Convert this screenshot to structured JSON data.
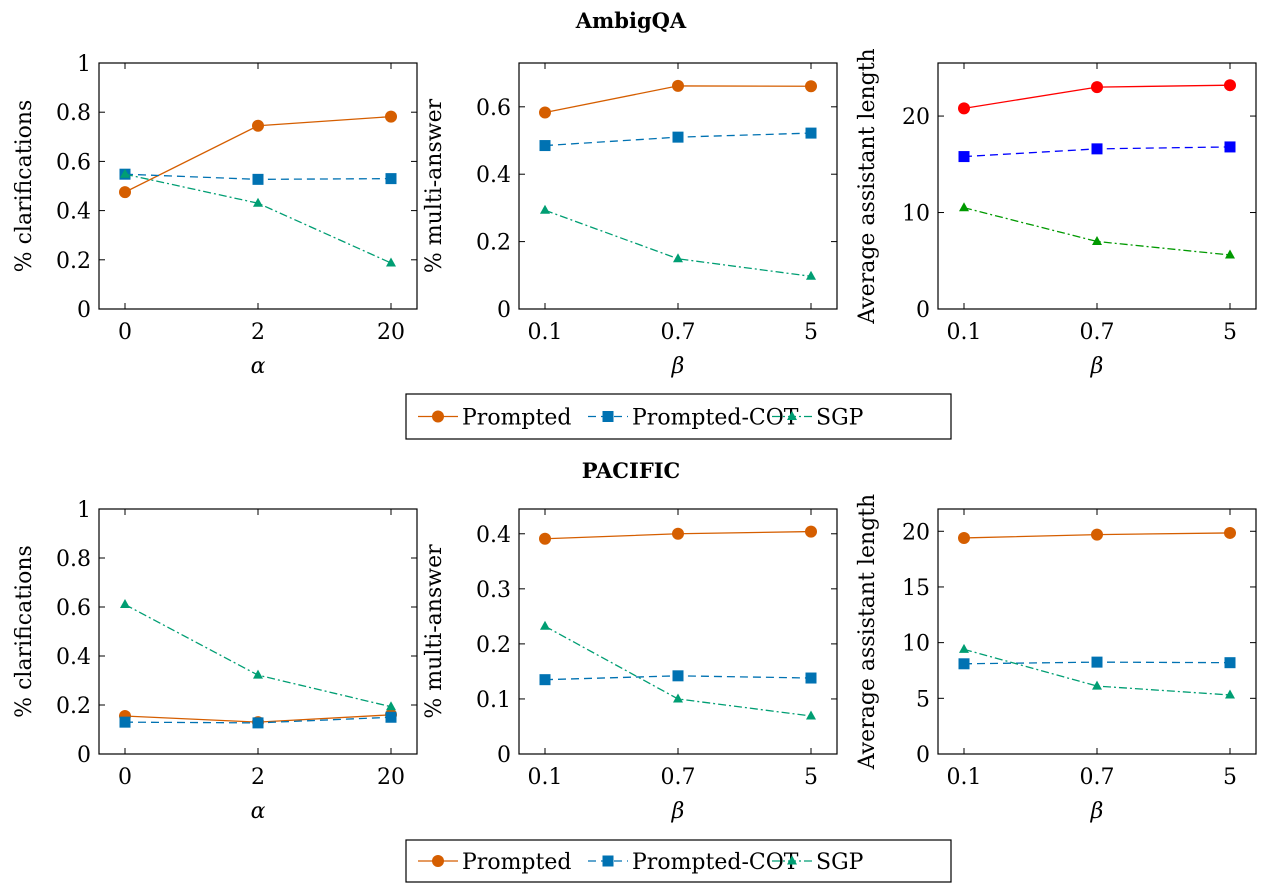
{
  "sections": [
    {
      "title": "AmbigQA",
      "legend": [
        "Prompted",
        "Prompted-COT",
        "SGP"
      ]
    },
    {
      "title": "PACIFIC",
      "legend": [
        "Prompted",
        "Prompted-COT",
        "SGP"
      ]
    }
  ],
  "series_styles": [
    {
      "color": "#d55e00",
      "marker": "circle",
      "dash": ""
    },
    {
      "color": "#0072b2",
      "marker": "square",
      "dash": "8 5"
    },
    {
      "color": "#009e73",
      "marker": "triangle",
      "dash": "8 3 2 3"
    }
  ],
  "chart_data": [
    {
      "type": "line",
      "section": 0,
      "x": [
        "0",
        "2",
        "20"
      ],
      "xlabel": "α",
      "ylabel": "% clarifications",
      "ylim": [
        0,
        1
      ],
      "yticks": [
        "0",
        "0.2",
        "0.4",
        "0.6",
        "0.8",
        "1"
      ],
      "yticks_values": [
        0,
        0.2,
        0.4,
        0.6,
        0.8,
        1
      ],
      "series": [
        {
          "name": "Prompted",
          "values": [
            0.475,
            0.745,
            0.782
          ]
        },
        {
          "name": "Prompted-COT",
          "values": [
            0.548,
            0.527,
            0.53
          ]
        },
        {
          "name": "SGP",
          "values": [
            0.548,
            0.43,
            0.187
          ]
        }
      ]
    },
    {
      "type": "line",
      "section": 0,
      "x": [
        "0.1",
        "0.7",
        "5"
      ],
      "xlabel": "β",
      "ylabel": "% multi-answer",
      "ylim": [
        0,
        0.73
      ],
      "yticks": [
        "0",
        "0.2",
        "0.4",
        "0.6"
      ],
      "yticks_values": [
        0,
        0.2,
        0.4,
        0.6
      ],
      "series": [
        {
          "name": "Prompted",
          "values": [
            0.583,
            0.662,
            0.661
          ]
        },
        {
          "name": "Prompted-COT",
          "values": [
            0.485,
            0.51,
            0.522
          ]
        },
        {
          "name": "SGP",
          "values": [
            0.293,
            0.149,
            0.097
          ]
        }
      ]
    },
    {
      "type": "line",
      "section": 0,
      "x": [
        "0.1",
        "0.7",
        "5"
      ],
      "xlabel": "β",
      "ylabel": "Average assistant length",
      "ylim": [
        0,
        25.5
      ],
      "yticks": [
        "0",
        "10",
        "20"
      ],
      "yticks_values": [
        0,
        10,
        20
      ],
      "colors": [
        "#ff0000",
        "#0000ff",
        "#009900"
      ],
      "series": [
        {
          "name": "Prompted",
          "values": [
            20.8,
            23.0,
            23.2
          ]
        },
        {
          "name": "Prompted-COT",
          "values": [
            15.8,
            16.6,
            16.8
          ]
        },
        {
          "name": "SGP",
          "values": [
            10.5,
            7.0,
            5.6
          ]
        }
      ]
    },
    {
      "type": "line",
      "section": 1,
      "x": [
        "0",
        "2",
        "20"
      ],
      "xlabel": "α",
      "ylabel": "% clarifications",
      "ylim": [
        0,
        1
      ],
      "yticks": [
        "0",
        "0.2",
        "0.4",
        "0.6",
        "0.8",
        "1"
      ],
      "yticks_values": [
        0,
        0.2,
        0.4,
        0.6,
        0.8,
        1
      ],
      "series": [
        {
          "name": "Prompted",
          "values": [
            0.155,
            0.13,
            0.16
          ]
        },
        {
          "name": "Prompted-COT",
          "values": [
            0.13,
            0.127,
            0.15
          ]
        },
        {
          "name": "SGP",
          "values": [
            0.61,
            0.322,
            0.193
          ]
        }
      ]
    },
    {
      "type": "line",
      "section": 1,
      "x": [
        "0.1",
        "0.7",
        "5"
      ],
      "xlabel": "β",
      "ylabel": "% multi-answer",
      "ylim": [
        0,
        0.445
      ],
      "yticks": [
        "0",
        "0.1",
        "0.2",
        "0.3",
        "0.4"
      ],
      "yticks_values": [
        0,
        0.1,
        0.2,
        0.3,
        0.4
      ],
      "series": [
        {
          "name": "Prompted",
          "values": [
            0.391,
            0.4,
            0.404
          ]
        },
        {
          "name": "Prompted-COT",
          "values": [
            0.135,
            0.142,
            0.138
          ]
        },
        {
          "name": "SGP",
          "values": [
            0.232,
            0.1,
            0.069
          ]
        }
      ]
    },
    {
      "type": "line",
      "section": 1,
      "x": [
        "0.1",
        "0.7",
        "5"
      ],
      "xlabel": "β",
      "ylabel": "Average assistant length",
      "ylim": [
        0,
        22
      ],
      "yticks": [
        "0",
        "5",
        "10",
        "15",
        "20"
      ],
      "yticks_values": [
        0,
        5,
        10,
        15,
        20
      ],
      "series": [
        {
          "name": "Prompted",
          "values": [
            19.4,
            19.7,
            19.85
          ]
        },
        {
          "name": "Prompted-COT",
          "values": [
            8.1,
            8.25,
            8.2
          ]
        },
        {
          "name": "SGP",
          "values": [
            9.4,
            6.1,
            5.3
          ]
        }
      ]
    }
  ]
}
